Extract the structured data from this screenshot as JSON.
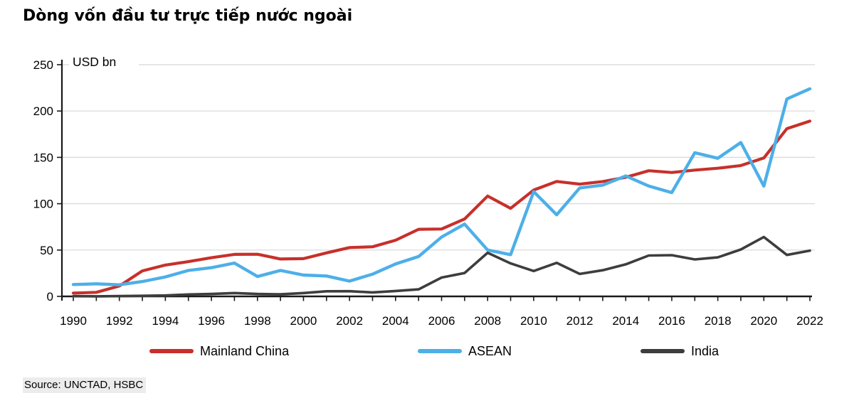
{
  "title": "Dòng vốn đầu tư trực tiếp nước ngoài",
  "source": "Source: UNCTAD, HSBC",
  "colors": {
    "mainland_china": "#C7302B",
    "asean": "#4DAFE8",
    "india": "#3D3D3D",
    "gridline": "#D8D8D8",
    "axis": "#1A1A1A",
    "source_highlight": "#ECECEC"
  },
  "chart_data": {
    "type": "line",
    "title": "Dòng vốn đầu tư trực tiếp nước ngoài",
    "unit_label": "USD bn",
    "xlabel": "",
    "ylabel": "USD bn",
    "ylim": [
      0,
      250
    ],
    "y_ticks": [
      0,
      50,
      100,
      150,
      200,
      250
    ],
    "grid": "horizontal",
    "legend_position": "bottom",
    "x": [
      1990,
      1991,
      1992,
      1993,
      1994,
      1995,
      1996,
      1997,
      1998,
      1999,
      2000,
      2001,
      2002,
      2003,
      2004,
      2005,
      2006,
      2007,
      2008,
      2009,
      2010,
      2011,
      2012,
      2013,
      2014,
      2015,
      2016,
      2017,
      2018,
      2019,
      2020,
      2021,
      2022
    ],
    "x_tick_labels": [
      "1990",
      "1992",
      "1994",
      "1996",
      "1998",
      "2000",
      "2002",
      "2004",
      "2006",
      "2008",
      "2010",
      "2012",
      "2014",
      "2016",
      "2018",
      "2020",
      "2022"
    ],
    "series": [
      {
        "name": "Mainland China",
        "color": "#C7302B",
        "width": 4.2,
        "z": 2,
        "values": [
          3.5,
          4.4,
          11.2,
          27.5,
          33.8,
          37.5,
          41.7,
          45.3,
          45.5,
          40.3,
          40.7,
          46.9,
          52.7,
          53.5,
          60.6,
          72.4,
          72.7,
          83.5,
          108.3,
          95.0,
          114.7,
          124.0,
          121.1,
          123.9,
          128.5,
          135.6,
          133.7,
          136.3,
          138.3,
          141.2,
          149.3,
          181.0,
          189.1
        ]
      },
      {
        "name": "ASEAN",
        "color": "#4DAFE8",
        "width": 4.4,
        "z": 3,
        "values": [
          12.8,
          13.6,
          12.5,
          16.0,
          21.0,
          28.0,
          31.0,
          36.0,
          21.5,
          28.0,
          23.0,
          22.0,
          16.5,
          24.0,
          35.0,
          43.0,
          64.0,
          78.0,
          50.0,
          45.0,
          113.0,
          88.0,
          117.0,
          120.0,
          130.0,
          119.0,
          112.0,
          155.0,
          149.0,
          166.0,
          119.0,
          213.0,
          224.0
        ]
      },
      {
        "name": "India",
        "color": "#3D3D3D",
        "width": 3.6,
        "z": 1,
        "values": [
          0.2,
          0.1,
          0.3,
          0.6,
          1.0,
          2.1,
          2.6,
          3.6,
          2.6,
          2.2,
          3.6,
          5.5,
          5.6,
          4.3,
          5.8,
          7.6,
          20.3,
          25.2,
          47.1,
          35.6,
          27.4,
          36.2,
          24.2,
          28.2,
          34.6,
          44.1,
          44.5,
          39.9,
          42.1,
          50.6,
          64.1,
          44.7,
          49.4
        ]
      }
    ]
  }
}
